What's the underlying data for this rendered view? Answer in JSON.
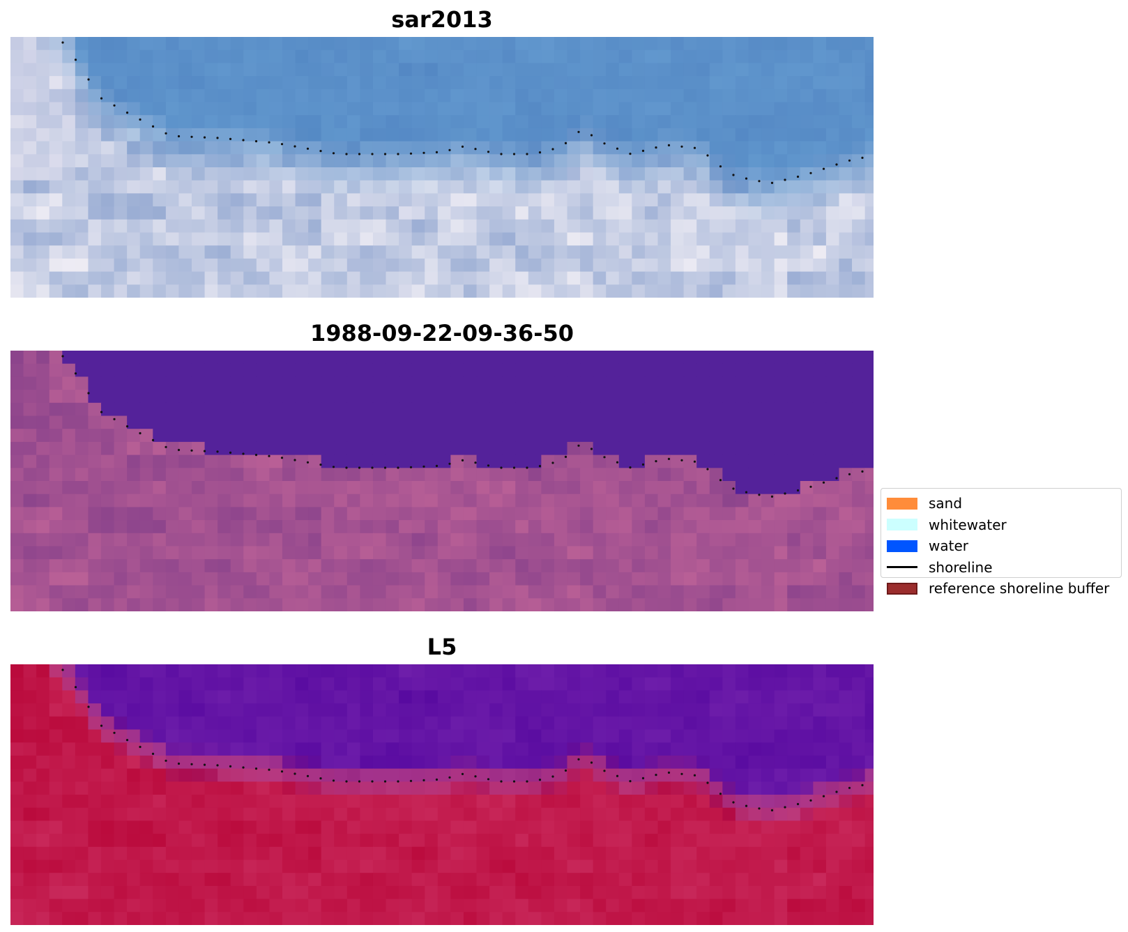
{
  "panels": [
    {
      "title": "sar2013",
      "style": "rgb"
    },
    {
      "title": "1988-09-22-09-36-50",
      "style": "classified"
    },
    {
      "title": "L5",
      "style": "index"
    }
  ],
  "legend": {
    "items": [
      {
        "label": "sand",
        "kind": "patch",
        "color": "#ff8c3a"
      },
      {
        "label": "whitewater",
        "kind": "patch",
        "color": "#ccffff"
      },
      {
        "label": "water",
        "kind": "patch",
        "color": "#0055ff"
      },
      {
        "label": "shoreline",
        "kind": "line",
        "color": "#000000"
      },
      {
        "label": "reference shoreline buffer",
        "kind": "patch-edge",
        "color": "#9b2d2d"
      }
    ]
  },
  "colors": {
    "classified_water": "#54229a",
    "classified_land": "#9c5090",
    "index_water": "#5a0aa0",
    "index_land": "#c01848"
  }
}
